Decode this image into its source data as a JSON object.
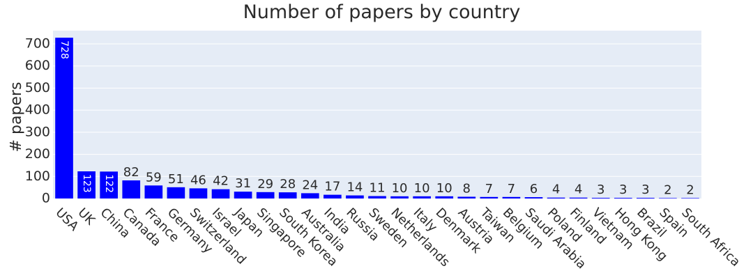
{
  "chart_data": {
    "type": "bar",
    "title": "Number of papers by country",
    "xlabel": "",
    "ylabel": "# papers",
    "ylim": [
      0,
      760
    ],
    "yticks": [
      0,
      100,
      200,
      300,
      400,
      500,
      600,
      700
    ],
    "grid": true,
    "bar_color": "#0000ff",
    "plot_bg": "#e5ecf6",
    "categories": [
      "USA",
      "UK",
      "China",
      "Canada",
      "France",
      "Germany",
      "Switzerland",
      "Israel",
      "Japan",
      "Singapore",
      "South Korea",
      "Australia",
      "India",
      "Russia",
      "Sweden",
      "Netherlands",
      "Italy",
      "Denmark",
      "Austria",
      "Taiwan",
      "Belgium",
      "Saudi Arabia",
      "Poland",
      "Finland",
      "Vietnam",
      "Hong Kong",
      "Brazil",
      "Spain",
      "South Africa"
    ],
    "values": [
      728,
      123,
      122,
      82,
      59,
      51,
      46,
      42,
      31,
      29,
      28,
      24,
      17,
      14,
      11,
      10,
      10,
      10,
      8,
      7,
      7,
      6,
      4,
      4,
      3,
      3,
      3,
      2,
      2
    ]
  }
}
